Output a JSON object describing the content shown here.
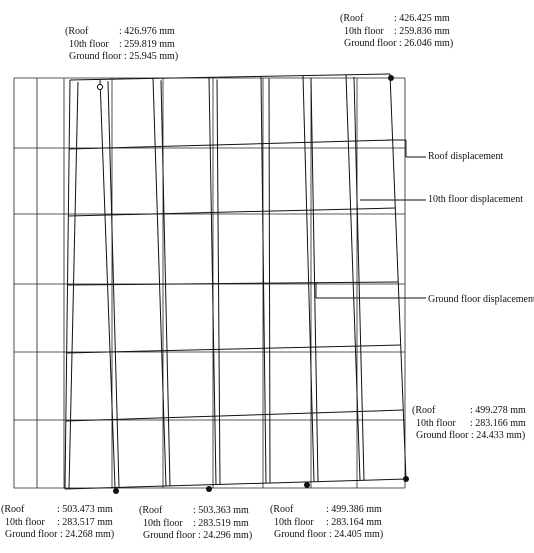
{
  "labels": {
    "top_left": {
      "roof": "(Roof",
      "roof_val": ": 426.976 mm",
      "tenth": "10th floor",
      "tenth_val": ": 259.819 mm",
      "ground": "Ground floor : 25.945 mm)"
    },
    "top_right": {
      "roof": "(Roof",
      "roof_val": ": 426.425 mm",
      "tenth": "10th floor",
      "tenth_val": ": 259.836 mm",
      "ground": "Ground floor : 26.046 mm)"
    },
    "mid_right": {
      "roof": "(Roof",
      "roof_val": ": 499.278 mm",
      "tenth": "10th floor",
      "tenth_val": ": 283.166 mm",
      "ground": "Ground floor : 24.433 mm)"
    },
    "bottom_1": {
      "roof": "(Roof",
      "roof_val": ": 503.473 mm",
      "tenth": "10th floor",
      "tenth_val": ": 283.517 mm",
      "ground": "Ground floor : 24.268 mm)"
    },
    "bottom_2": {
      "roof": "(Roof",
      "roof_val": ": 503.363 mm",
      "tenth": "10th floor",
      "tenth_val": ": 283.519 mm",
      "ground": "Ground floor : 24.296 mm)"
    },
    "bottom_3": {
      "roof": "(Roof",
      "roof_val": ": 499.386 mm",
      "tenth": "10th floor",
      "tenth_val": ": 283.164 mm",
      "ground": "Ground floor : 24.405 mm)"
    }
  },
  "callouts": {
    "roof": "Roof displacement",
    "tenth": "10th floor displacement",
    "ground": "Ground floor displacement"
  }
}
